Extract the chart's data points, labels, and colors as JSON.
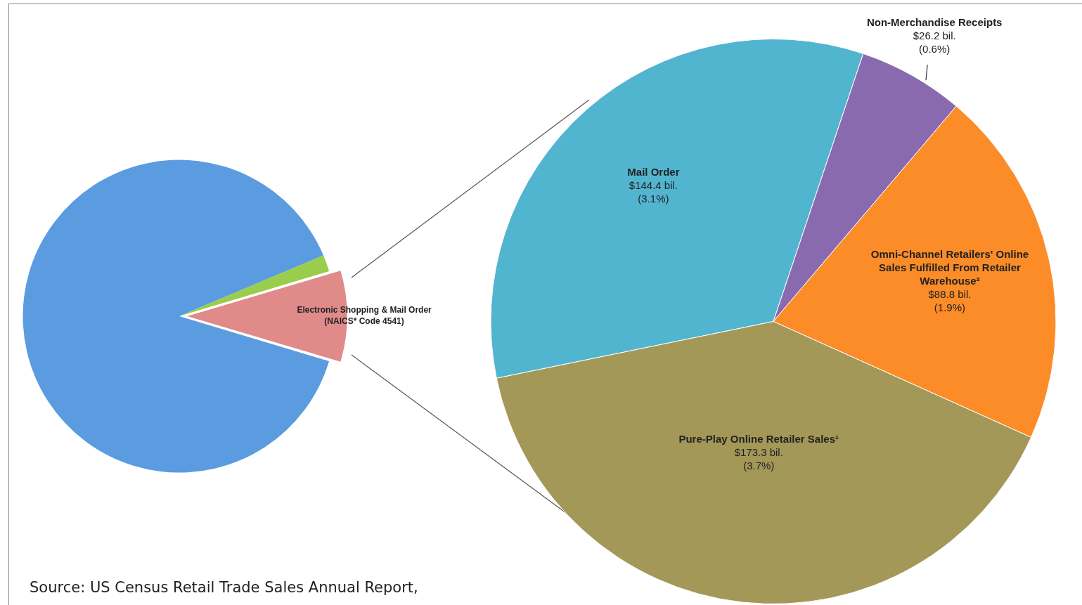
{
  "chart_data": [
    {
      "type": "pie",
      "categories": [
        "Electronic Shopping & Mail Order (NAICS* Code 4541)",
        null,
        null
      ],
      "values": [
        9.3,
        89.0,
        1.7
      ],
      "colors": [
        "#e08a8a",
        "#5b9be0",
        "#9acd4c"
      ],
      "annotations": [
        "Source: US Census Retail Trade Sales Annual Report,"
      ]
    },
    {
      "type": "pie",
      "categories": [
        "Mail Order",
        "Non-Merchandise Receipts",
        "Omni-Channel Retailers' Online Sales Fulfilled From Retailer Warehouse²",
        "Pure-Play Online Retailer Sales¹"
      ],
      "values": [
        144.4,
        26.2,
        88.8,
        173.3
      ],
      "colors": [
        "#52b5d0",
        "#8a6aae",
        "#fb8c28",
        "#a39858"
      ],
      "value_labels": [
        "$144.4 bil.\n(3.1%)",
        "$26.2 bil.\n(0.6%)",
        "$88.8 bil.\n(1.9%)",
        "$173.3 bil.\n(3.7%)"
      ]
    }
  ]
}
